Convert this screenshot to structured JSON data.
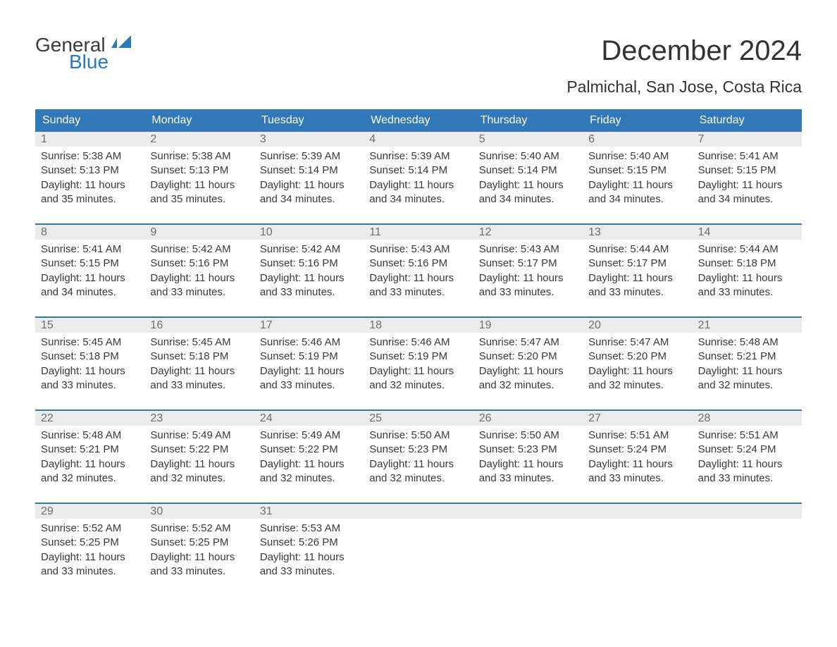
{
  "logo": {
    "top": "General",
    "bottom": "Blue"
  },
  "title": "December 2024",
  "subtitle": "Palmichal, San Jose, Costa Rica",
  "headerColor": "#3178b8",
  "headerTextColor": "#ffffff",
  "daynumBg": "#ececec",
  "weekBorderColor": "#3178b8",
  "textColor": "#3a3a3a",
  "dayHeaders": [
    "Sunday",
    "Monday",
    "Tuesday",
    "Wednesday",
    "Thursday",
    "Friday",
    "Saturday"
  ],
  "weeks": [
    [
      {
        "n": "1",
        "sr": "5:38 AM",
        "ss": "5:13 PM",
        "dl": "11 hours and 35 minutes."
      },
      {
        "n": "2",
        "sr": "5:38 AM",
        "ss": "5:13 PM",
        "dl": "11 hours and 35 minutes."
      },
      {
        "n": "3",
        "sr": "5:39 AM",
        "ss": "5:14 PM",
        "dl": "11 hours and 34 minutes."
      },
      {
        "n": "4",
        "sr": "5:39 AM",
        "ss": "5:14 PM",
        "dl": "11 hours and 34 minutes."
      },
      {
        "n": "5",
        "sr": "5:40 AM",
        "ss": "5:14 PM",
        "dl": "11 hours and 34 minutes."
      },
      {
        "n": "6",
        "sr": "5:40 AM",
        "ss": "5:15 PM",
        "dl": "11 hours and 34 minutes."
      },
      {
        "n": "7",
        "sr": "5:41 AM",
        "ss": "5:15 PM",
        "dl": "11 hours and 34 minutes."
      }
    ],
    [
      {
        "n": "8",
        "sr": "5:41 AM",
        "ss": "5:15 PM",
        "dl": "11 hours and 34 minutes."
      },
      {
        "n": "9",
        "sr": "5:42 AM",
        "ss": "5:16 PM",
        "dl": "11 hours and 33 minutes."
      },
      {
        "n": "10",
        "sr": "5:42 AM",
        "ss": "5:16 PM",
        "dl": "11 hours and 33 minutes."
      },
      {
        "n": "11",
        "sr": "5:43 AM",
        "ss": "5:16 PM",
        "dl": "11 hours and 33 minutes."
      },
      {
        "n": "12",
        "sr": "5:43 AM",
        "ss": "5:17 PM",
        "dl": "11 hours and 33 minutes."
      },
      {
        "n": "13",
        "sr": "5:44 AM",
        "ss": "5:17 PM",
        "dl": "11 hours and 33 minutes."
      },
      {
        "n": "14",
        "sr": "5:44 AM",
        "ss": "5:18 PM",
        "dl": "11 hours and 33 minutes."
      }
    ],
    [
      {
        "n": "15",
        "sr": "5:45 AM",
        "ss": "5:18 PM",
        "dl": "11 hours and 33 minutes."
      },
      {
        "n": "16",
        "sr": "5:45 AM",
        "ss": "5:18 PM",
        "dl": "11 hours and 33 minutes."
      },
      {
        "n": "17",
        "sr": "5:46 AM",
        "ss": "5:19 PM",
        "dl": "11 hours and 33 minutes."
      },
      {
        "n": "18",
        "sr": "5:46 AM",
        "ss": "5:19 PM",
        "dl": "11 hours and 32 minutes."
      },
      {
        "n": "19",
        "sr": "5:47 AM",
        "ss": "5:20 PM",
        "dl": "11 hours and 32 minutes."
      },
      {
        "n": "20",
        "sr": "5:47 AM",
        "ss": "5:20 PM",
        "dl": "11 hours and 32 minutes."
      },
      {
        "n": "21",
        "sr": "5:48 AM",
        "ss": "5:21 PM",
        "dl": "11 hours and 32 minutes."
      }
    ],
    [
      {
        "n": "22",
        "sr": "5:48 AM",
        "ss": "5:21 PM",
        "dl": "11 hours and 32 minutes."
      },
      {
        "n": "23",
        "sr": "5:49 AM",
        "ss": "5:22 PM",
        "dl": "11 hours and 32 minutes."
      },
      {
        "n": "24",
        "sr": "5:49 AM",
        "ss": "5:22 PM",
        "dl": "11 hours and 32 minutes."
      },
      {
        "n": "25",
        "sr": "5:50 AM",
        "ss": "5:23 PM",
        "dl": "11 hours and 32 minutes."
      },
      {
        "n": "26",
        "sr": "5:50 AM",
        "ss": "5:23 PM",
        "dl": "11 hours and 33 minutes."
      },
      {
        "n": "27",
        "sr": "5:51 AM",
        "ss": "5:24 PM",
        "dl": "11 hours and 33 minutes."
      },
      {
        "n": "28",
        "sr": "5:51 AM",
        "ss": "5:24 PM",
        "dl": "11 hours and 33 minutes."
      }
    ],
    [
      {
        "n": "29",
        "sr": "5:52 AM",
        "ss": "5:25 PM",
        "dl": "11 hours and 33 minutes."
      },
      {
        "n": "30",
        "sr": "5:52 AM",
        "ss": "5:25 PM",
        "dl": "11 hours and 33 minutes."
      },
      {
        "n": "31",
        "sr": "5:53 AM",
        "ss": "5:26 PM",
        "dl": "11 hours and 33 minutes."
      },
      null,
      null,
      null,
      null
    ]
  ],
  "labels": {
    "sunrise": "Sunrise: ",
    "sunset": "Sunset: ",
    "daylight": "Daylight: "
  }
}
